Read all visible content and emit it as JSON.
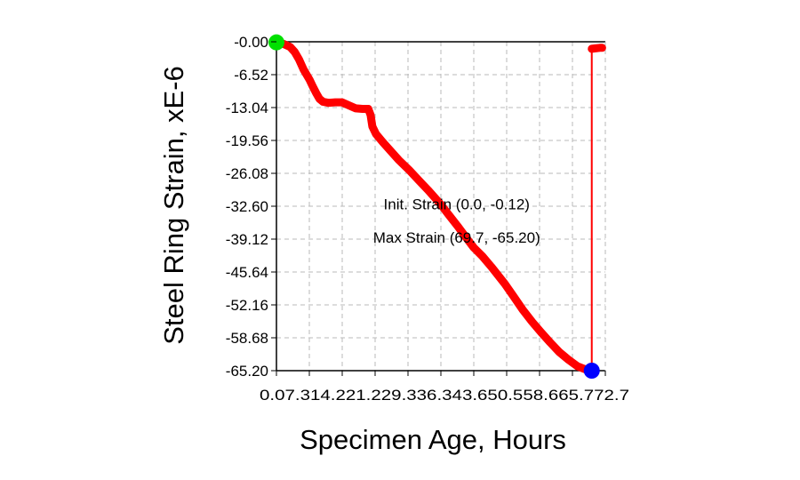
{
  "chart_data": {
    "type": "line",
    "title": "",
    "xlabel": "Specimen Age, Hours",
    "ylabel": "Steel Ring Strain, xE-6",
    "xlim": [
      0,
      72.7
    ],
    "ylim": [
      -65.2,
      0
    ],
    "x_tick_labels": [
      "0.0",
      "7.3",
      "14.2",
      "21.2",
      "29.3",
      "36.3",
      "43.6",
      "50.5",
      "58.6",
      "65.7",
      "72.7"
    ],
    "y_tick_labels": [
      "-0.00",
      "-6.52",
      "-13.04",
      "-19.56",
      "-26.08",
      "-32.60",
      "-39.12",
      "-45.64",
      "-52.16",
      "-58.68",
      "-65.20"
    ],
    "grid": true,
    "series": [
      {
        "color": "#ff0000",
        "points": [
          [
            0.0,
            -0.12
          ],
          [
            1.5,
            -0.4
          ],
          [
            3.0,
            -1.0
          ],
          [
            4.0,
            -2.0
          ],
          [
            5.0,
            -3.5
          ],
          [
            6.0,
            -5.5
          ],
          [
            7.3,
            -7.5
          ],
          [
            8.0,
            -8.8
          ],
          [
            8.8,
            -10.2
          ],
          [
            9.5,
            -11.3
          ],
          [
            10.3,
            -11.9
          ],
          [
            11.5,
            -12.1
          ],
          [
            13.0,
            -12.0
          ],
          [
            14.5,
            -12.0
          ],
          [
            16.0,
            -12.6
          ],
          [
            17.5,
            -13.2
          ],
          [
            19.0,
            -13.3
          ],
          [
            20.3,
            -13.3
          ],
          [
            20.8,
            -14.5
          ],
          [
            21.2,
            -16.8
          ],
          [
            22.0,
            -18.3
          ],
          [
            23.5,
            -19.9
          ],
          [
            25.0,
            -21.4
          ],
          [
            27.0,
            -23.4
          ],
          [
            29.3,
            -25.4
          ],
          [
            31.5,
            -27.5
          ],
          [
            33.5,
            -29.4
          ],
          [
            36.3,
            -32.2
          ],
          [
            38.0,
            -34.2
          ],
          [
            40.0,
            -36.5
          ],
          [
            42.0,
            -38.9
          ],
          [
            43.6,
            -40.8
          ],
          [
            45.5,
            -42.5
          ],
          [
            47.5,
            -44.6
          ],
          [
            50.5,
            -48.0
          ],
          [
            52.5,
            -50.6
          ],
          [
            54.5,
            -53.2
          ],
          [
            56.5,
            -55.5
          ],
          [
            58.6,
            -57.7
          ],
          [
            60.5,
            -59.6
          ],
          [
            62.5,
            -61.5
          ],
          [
            64.5,
            -63.0
          ],
          [
            66.5,
            -64.3
          ],
          [
            68.5,
            -65.0
          ],
          [
            69.7,
            -65.2
          ],
          [
            69.7,
            -1.4
          ],
          [
            70.5,
            -1.3
          ],
          [
            71.5,
            -1.2
          ],
          [
            72.0,
            -1.2
          ]
        ]
      }
    ],
    "markers": [
      {
        "name": "init",
        "x": 0.0,
        "y": -0.12,
        "color": "#00e000"
      },
      {
        "name": "max",
        "x": 69.7,
        "y": -65.2,
        "color": "#0000ff"
      }
    ],
    "annotations": [
      {
        "text": "Init. Strain (0.0, -0.12)",
        "x": 36.3,
        "y": -32.2
      },
      {
        "text": "Max Strain (69.7, -65.20)",
        "x": 36.3,
        "y": -38.8
      }
    ]
  }
}
